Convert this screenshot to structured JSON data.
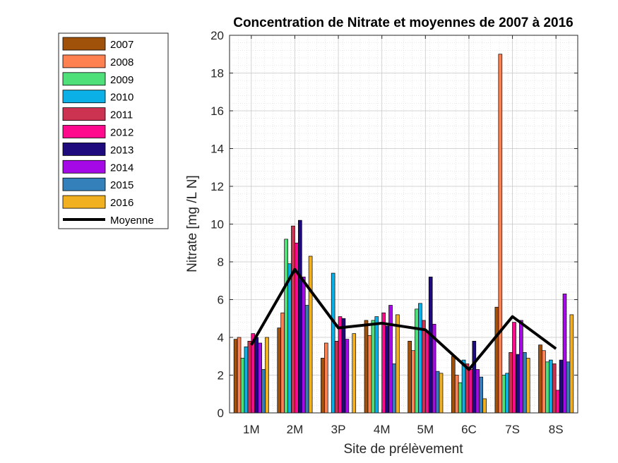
{
  "chart_data": {
    "type": "bar",
    "title": "Concentration de Nitrate et moyennes de 2007 à 2016",
    "xlabel": "Site de prélèvement",
    "ylabel": "Nitrate [mg /L N]",
    "ylim": [
      0,
      20
    ],
    "yticks": [
      0,
      2,
      4,
      6,
      8,
      10,
      12,
      14,
      16,
      18,
      20
    ],
    "grid": true,
    "minor_grid": true,
    "legend_position": "outside-left",
    "categories": [
      "1M",
      "2M",
      "3P",
      "4M",
      "5M",
      "6C",
      "7S",
      "8S"
    ],
    "series": [
      {
        "name": "2007",
        "color": "#A0520A",
        "values": [
          3.9,
          4.5,
          2.9,
          4.9,
          3.8,
          3.0,
          5.6,
          3.6
        ]
      },
      {
        "name": "2008",
        "color": "#FF8050",
        "values": [
          4.0,
          5.3,
          3.7,
          4.1,
          3.3,
          2.0,
          19.0,
          3.3
        ]
      },
      {
        "name": "2009",
        "color": "#50E07A",
        "values": [
          2.9,
          9.2,
          0,
          4.9,
          5.5,
          1.6,
          2.0,
          2.7
        ]
      },
      {
        "name": "2010",
        "color": "#0AB0E6",
        "values": [
          3.5,
          7.9,
          7.4,
          5.1,
          5.8,
          2.8,
          2.1,
          2.8
        ]
      },
      {
        "name": "2011",
        "color": "#CC3350",
        "values": [
          3.8,
          9.9,
          3.8,
          0,
          4.9,
          2.6,
          3.2,
          2.6
        ]
      },
      {
        "name": "2012",
        "color": "#FF0A8C",
        "values": [
          4.2,
          9.0,
          5.1,
          5.3,
          4.3,
          2.3,
          4.8,
          1.2
        ]
      },
      {
        "name": "2013",
        "color": "#1E0A7D",
        "values": [
          4.0,
          10.2,
          5.0,
          4.6,
          7.2,
          3.8,
          3.1,
          2.8
        ]
      },
      {
        "name": "2014",
        "color": "#A50AE6",
        "values": [
          3.7,
          7.2,
          3.9,
          5.7,
          4.7,
          2.3,
          4.9,
          6.3
        ]
      },
      {
        "name": "2015",
        "color": "#3380BA",
        "values": [
          2.3,
          5.7,
          0,
          2.6,
          2.2,
          1.9,
          3.2,
          2.7
        ]
      },
      {
        "name": "2016",
        "color": "#F0B020",
        "values": [
          4.0,
          8.3,
          4.2,
          5.2,
          2.1,
          0.75,
          2.9,
          5.2
        ]
      }
    ],
    "mean_series": {
      "name": "Moyenne",
      "color": "#000000",
      "values": [
        3.6,
        7.6,
        4.5,
        4.75,
        4.4,
        2.3,
        5.1,
        3.4
      ]
    }
  }
}
